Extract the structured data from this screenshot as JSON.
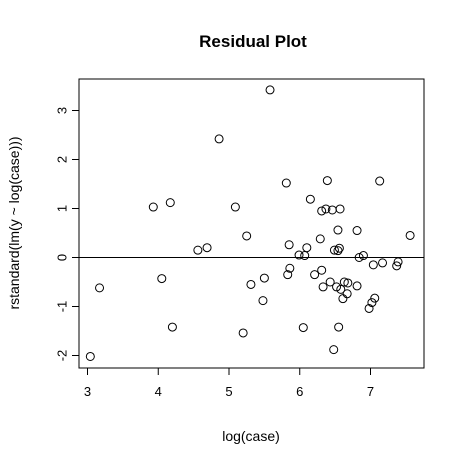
{
  "chart_data": {
    "type": "scatter",
    "title": "Residual Plot",
    "xlabel": "log(case)",
    "ylabel": "rstandard(lm(y ~ log(case)))",
    "xlim": [
      3.0,
      7.6
    ],
    "ylim": [
      -2.1,
      3.5
    ],
    "x_ticks": [
      3,
      4,
      5,
      6,
      7
    ],
    "y_ticks": [
      -2,
      -1,
      0,
      1,
      2,
      3
    ],
    "reference_line": 0,
    "grid": false,
    "points": [
      {
        "x": 3.04,
        "y": -2.02
      },
      {
        "x": 3.17,
        "y": -0.62
      },
      {
        "x": 3.93,
        "y": 1.03
      },
      {
        "x": 4.05,
        "y": -0.43
      },
      {
        "x": 4.17,
        "y": 1.12
      },
      {
        "x": 4.2,
        "y": -1.42
      },
      {
        "x": 4.56,
        "y": 0.15
      },
      {
        "x": 4.69,
        "y": 0.2
      },
      {
        "x": 4.86,
        "y": 2.42
      },
      {
        "x": 5.09,
        "y": 1.03
      },
      {
        "x": 5.2,
        "y": -1.54
      },
      {
        "x": 5.25,
        "y": 0.44
      },
      {
        "x": 5.31,
        "y": -0.55
      },
      {
        "x": 5.48,
        "y": -0.88
      },
      {
        "x": 5.5,
        "y": -0.42
      },
      {
        "x": 5.58,
        "y": 3.42
      },
      {
        "x": 5.81,
        "y": 1.52
      },
      {
        "x": 5.83,
        "y": -0.35
      },
      {
        "x": 5.85,
        "y": 0.26
      },
      {
        "x": 5.86,
        "y": -0.22
      },
      {
        "x": 5.99,
        "y": 0.05
      },
      {
        "x": 6.05,
        "y": -1.43
      },
      {
        "x": 6.07,
        "y": 0.04
      },
      {
        "x": 6.1,
        "y": 0.2
      },
      {
        "x": 6.15,
        "y": 1.19
      },
      {
        "x": 6.21,
        "y": -0.35
      },
      {
        "x": 6.29,
        "y": 0.38
      },
      {
        "x": 6.31,
        "y": -0.26
      },
      {
        "x": 6.31,
        "y": 0.95
      },
      {
        "x": 6.33,
        "y": -0.6
      },
      {
        "x": 6.37,
        "y": 0.99
      },
      {
        "x": 6.39,
        "y": 1.57
      },
      {
        "x": 6.43,
        "y": -0.5
      },
      {
        "x": 6.46,
        "y": 0.97
      },
      {
        "x": 6.48,
        "y": -1.88
      },
      {
        "x": 6.49,
        "y": 0.15
      },
      {
        "x": 6.52,
        "y": -0.6
      },
      {
        "x": 6.54,
        "y": 0.56
      },
      {
        "x": 6.54,
        "y": 0.14
      },
      {
        "x": 6.55,
        "y": -1.42
      },
      {
        "x": 6.56,
        "y": 0.19
      },
      {
        "x": 6.57,
        "y": 0.99
      },
      {
        "x": 6.58,
        "y": -0.65
      },
      {
        "x": 6.61,
        "y": -0.84
      },
      {
        "x": 6.63,
        "y": -0.5
      },
      {
        "x": 6.67,
        "y": -0.74
      },
      {
        "x": 6.68,
        "y": -0.52
      },
      {
        "x": 6.81,
        "y": 0.55
      },
      {
        "x": 6.81,
        "y": -0.58
      },
      {
        "x": 6.84,
        "y": 0.0
      },
      {
        "x": 6.9,
        "y": 0.04
      },
      {
        "x": 6.98,
        "y": -1.04
      },
      {
        "x": 7.02,
        "y": -0.92
      },
      {
        "x": 7.04,
        "y": -0.15
      },
      {
        "x": 7.06,
        "y": -0.83
      },
      {
        "x": 7.13,
        "y": 1.56
      },
      {
        "x": 7.17,
        "y": -0.11
      },
      {
        "x": 7.37,
        "y": -0.17
      },
      {
        "x": 7.39,
        "y": -0.09
      },
      {
        "x": 7.56,
        "y": 0.45
      }
    ]
  }
}
